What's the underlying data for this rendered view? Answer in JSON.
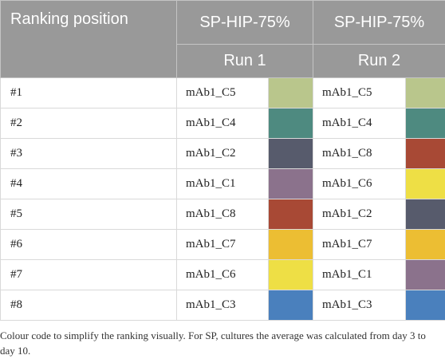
{
  "header": {
    "ranking_label": "Ranking position",
    "group1": "SP-HIP-75%",
    "group2": "SP-HIP-75%",
    "run1": "Run 1",
    "run2": "Run 2"
  },
  "rows": [
    {
      "rank": "#1",
      "run1": {
        "name": "mAb1_C5",
        "color": "#b9c68c"
      },
      "run2": {
        "name": "mAb1_C5",
        "color": "#b9c68c"
      }
    },
    {
      "rank": "#2",
      "run1": {
        "name": "mAb1_C4",
        "color": "#4e8a80"
      },
      "run2": {
        "name": "mAb1_C4",
        "color": "#4e8a80"
      }
    },
    {
      "rank": "#3",
      "run1": {
        "name": "mAb1_C2",
        "color": "#575b6c"
      },
      "run2": {
        "name": "mAb1_C8",
        "color": "#a84935"
      }
    },
    {
      "rank": "#4",
      "run1": {
        "name": "mAb1_C1",
        "color": "#8b728c"
      },
      "run2": {
        "name": "mAb1_C6",
        "color": "#eedf45"
      }
    },
    {
      "rank": "#5",
      "run1": {
        "name": "mAb1_C8",
        "color": "#a84935"
      },
      "run2": {
        "name": "mAb1_C2",
        "color": "#575b6c"
      }
    },
    {
      "rank": "#6",
      "run1": {
        "name": "mAb1_C7",
        "color": "#ecbe33"
      },
      "run2": {
        "name": "mAb1_C7",
        "color": "#ecbe33"
      }
    },
    {
      "rank": "#7",
      "run1": {
        "name": "mAb1_C6",
        "color": "#eedf45"
      },
      "run2": {
        "name": "mAb1_C1",
        "color": "#8b728c"
      }
    },
    {
      "rank": "#8",
      "run1": {
        "name": "mAb1_C3",
        "color": "#4a80bd"
      },
      "run2": {
        "name": "mAb1_C3",
        "color": "#4a80bd"
      }
    }
  ],
  "footnote": "Colour code to simplify the ranking visually. For SP, cultures the average was calculated from day 3 to day 10."
}
